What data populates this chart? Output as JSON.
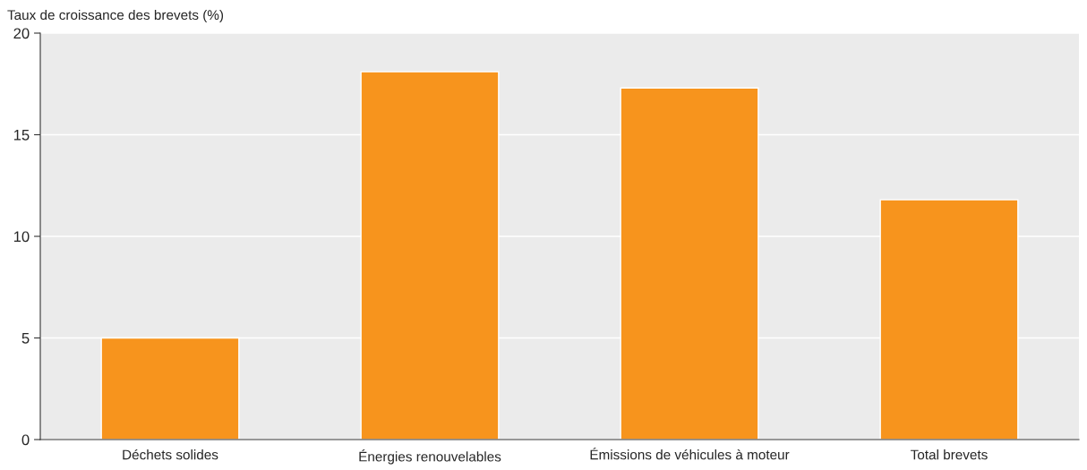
{
  "chart_data": {
    "type": "bar",
    "ylabel": "Taux de croissance des brevets (%)",
    "categories": [
      "Déchets solides",
      "Énergies renouvelables",
      "Émissions de véhicules à moteur",
      "Total brevets"
    ],
    "values": [
      5.0,
      18.1,
      17.3,
      11.8
    ],
    "color": "#f7941d",
    "ylim": [
      0,
      20
    ],
    "yticks": [
      0,
      5,
      10,
      15,
      20
    ],
    "grid": "y"
  }
}
